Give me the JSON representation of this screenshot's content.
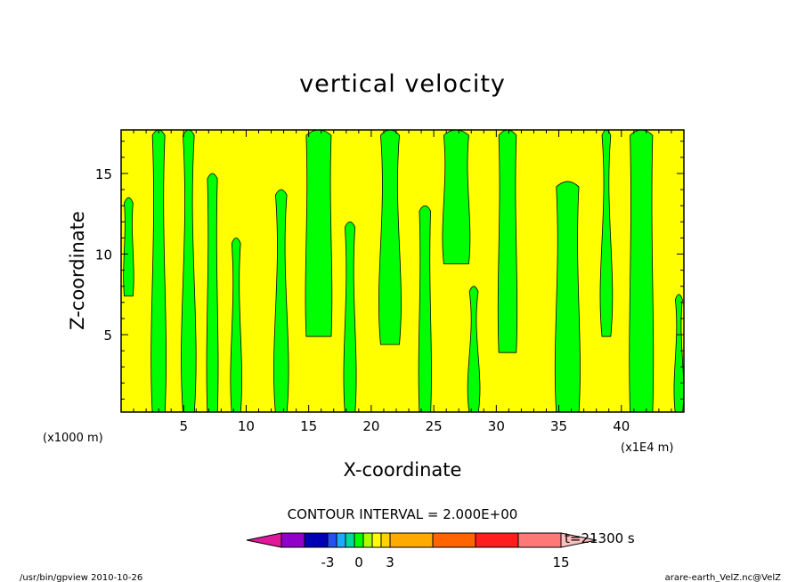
{
  "chart_data": {
    "type": "heatmap",
    "title": "vertical velocity",
    "xlabel": "X-coordinate",
    "ylabel": "Z-coordinate",
    "x_unit": "(x1000 m)",
    "x_unit2": "(x1E4 m)",
    "xlim": [
      0,
      45
    ],
    "ylim": [
      0.2,
      17.7
    ],
    "x_ticks": [
      5,
      10,
      15,
      20,
      25,
      30,
      35,
      40
    ],
    "y_ticks": [
      5,
      10,
      15
    ],
    "contour_interval": "CONTOUR INTERVAL = 2.000E+00",
    "time_label": "t=21300 s",
    "footer_left": "/usr/bin/gpview   2010-10-26",
    "footer_right": "arare-earth_VelZ.nc@VelZ",
    "colorbar": {
      "labels": [
        {
          "text": "-3",
          "value": -3
        },
        {
          "text": "0",
          "value": 0
        },
        {
          "text": "3",
          "value": 3
        },
        {
          "text": "15",
          "value": 15
        }
      ],
      "colors": [
        "#e0189c",
        "#9000c8",
        "#0000b4",
        "#2850f0",
        "#1eaaff",
        "#00d89c",
        "#00ff00",
        "#aaff00",
        "#ffff00",
        "#ffd200",
        "#ffaa00",
        "#ff6400",
        "#ff1e1e",
        "#ff7878",
        "#ffbebe"
      ]
    },
    "legend_colors": {
      "positive": "#ffff00",
      "negative": "#00ff00"
    },
    "field_description_values": "alternating vertical plumes of updraft (yellow) and downdraft (green)",
    "plumes": [
      {
        "x": 0.6,
        "zmin": 7.5,
        "zmax": 13.5,
        "w": 0.7
      },
      {
        "x": 3.0,
        "zmin": 0.2,
        "zmax": 17.7,
        "w": 1.0
      },
      {
        "x": 5.4,
        "zmin": 0.2,
        "zmax": 17.7,
        "w": 0.9
      },
      {
        "x": 7.3,
        "zmin": 0.2,
        "zmax": 15.0,
        "w": 0.8
      },
      {
        "x": 9.2,
        "zmin": 0.2,
        "zmax": 11.0,
        "w": 0.7
      },
      {
        "x": 12.8,
        "zmin": 0.2,
        "zmax": 14.0,
        "w": 0.9
      },
      {
        "x": 15.8,
        "zmin": 5.0,
        "zmax": 17.7,
        "w": 2.0
      },
      {
        "x": 18.3,
        "zmin": 0.2,
        "zmax": 12.0,
        "w": 0.8
      },
      {
        "x": 21.5,
        "zmin": 4.5,
        "zmax": 17.7,
        "w": 1.5
      },
      {
        "x": 24.3,
        "zmin": 0.2,
        "zmax": 13.0,
        "w": 0.9
      },
      {
        "x": 26.8,
        "zmin": 9.5,
        "zmax": 17.7,
        "w": 2.0
      },
      {
        "x": 28.2,
        "zmin": 0.2,
        "zmax": 8.0,
        "w": 0.7
      },
      {
        "x": 30.9,
        "zmin": 4.0,
        "zmax": 17.7,
        "w": 1.4
      },
      {
        "x": 35.7,
        "zmin": 0.2,
        "zmax": 14.5,
        "w": 1.8
      },
      {
        "x": 38.8,
        "zmin": 5.0,
        "zmax": 17.7,
        "w": 0.7
      },
      {
        "x": 41.6,
        "zmin": 0.2,
        "zmax": 17.7,
        "w": 1.8
      },
      {
        "x": 44.6,
        "zmin": 0.2,
        "zmax": 7.5,
        "w": 0.5
      }
    ]
  }
}
